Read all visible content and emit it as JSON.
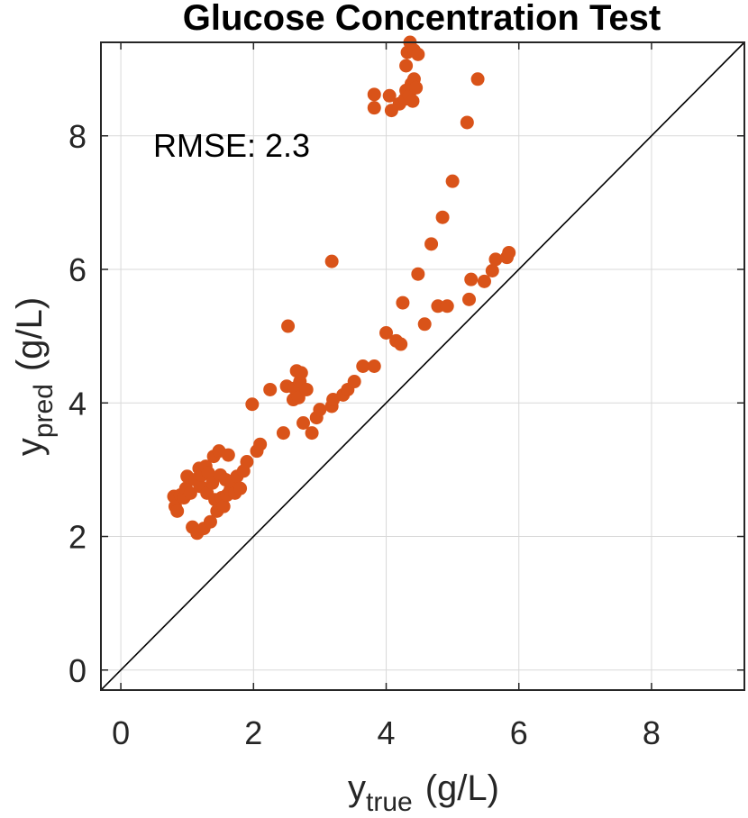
{
  "chart_data": {
    "type": "scatter",
    "title": "Glucose Concentration Test",
    "xlabel": {
      "main": "y",
      "sub": "true",
      "unit": "(g/L)"
    },
    "ylabel": {
      "main": "y",
      "sub": "pred",
      "unit": "(g/L)"
    },
    "xlim": [
      -0.3,
      9.4
    ],
    "ylim": [
      -0.3,
      9.4
    ],
    "xticks": [
      0,
      2,
      4,
      6,
      8
    ],
    "yticks": [
      0,
      2,
      4,
      6,
      8
    ],
    "grid": true,
    "annotation": "RMSE: 2.3",
    "reference_line": "y = x",
    "marker_color": "#D95319",
    "points": [
      [
        0.8,
        2.6
      ],
      [
        0.82,
        2.45
      ],
      [
        0.85,
        2.38
      ],
      [
        0.9,
        2.62
      ],
      [
        0.95,
        2.58
      ],
      [
        0.98,
        2.72
      ],
      [
        1.0,
        2.9
      ],
      [
        1.05,
        2.65
      ],
      [
        1.08,
        2.14
      ],
      [
        1.12,
        2.85
      ],
      [
        1.15,
        2.05
      ],
      [
        1.18,
        3.02
      ],
      [
        1.2,
        2.75
      ],
      [
        1.22,
        2.92
      ],
      [
        1.25,
        2.12
      ],
      [
        1.28,
        3.05
      ],
      [
        1.3,
        2.65
      ],
      [
        1.32,
        2.95
      ],
      [
        1.35,
        2.22
      ],
      [
        1.38,
        2.8
      ],
      [
        1.4,
        3.2
      ],
      [
        1.42,
        2.55
      ],
      [
        1.45,
        2.38
      ],
      [
        1.48,
        3.28
      ],
      [
        1.5,
        2.92
      ],
      [
        1.52,
        2.58
      ],
      [
        1.55,
        2.45
      ],
      [
        1.58,
        2.85
      ],
      [
        1.6,
        2.62
      ],
      [
        1.62,
        3.22
      ],
      [
        1.65,
        2.7
      ],
      [
        1.68,
        2.82
      ],
      [
        1.72,
        2.65
      ],
      [
        1.75,
        2.9
      ],
      [
        1.8,
        2.72
      ],
      [
        1.85,
        2.98
      ],
      [
        1.9,
        3.12
      ],
      [
        1.98,
        3.98
      ],
      [
        2.05,
        3.28
      ],
      [
        2.1,
        3.38
      ],
      [
        2.25,
        4.2
      ],
      [
        2.45,
        3.55
      ],
      [
        2.5,
        4.25
      ],
      [
        2.52,
        5.15
      ],
      [
        2.6,
        4.05
      ],
      [
        2.62,
        4.22
      ],
      [
        2.65,
        4.48
      ],
      [
        2.68,
        4.08
      ],
      [
        2.7,
        4.32
      ],
      [
        2.72,
        4.45
      ],
      [
        2.75,
        3.7
      ],
      [
        2.8,
        4.2
      ],
      [
        2.88,
        3.55
      ],
      [
        2.95,
        3.78
      ],
      [
        3.0,
        3.9
      ],
      [
        3.18,
        3.95
      ],
      [
        3.18,
        6.12
      ],
      [
        3.2,
        4.05
      ],
      [
        3.35,
        4.12
      ],
      [
        3.42,
        4.2
      ],
      [
        3.52,
        4.32
      ],
      [
        3.65,
        4.55
      ],
      [
        3.82,
        4.55
      ],
      [
        3.82,
        8.62
      ],
      [
        3.82,
        8.42
      ],
      [
        4.0,
        5.05
      ],
      [
        4.05,
        8.6
      ],
      [
        4.08,
        8.38
      ],
      [
        4.15,
        4.93
      ],
      [
        4.2,
        8.48
      ],
      [
        4.22,
        4.88
      ],
      [
        4.25,
        5.5
      ],
      [
        4.28,
        8.55
      ],
      [
        4.3,
        9.05
      ],
      [
        4.3,
        8.68
      ],
      [
        4.32,
        9.25
      ],
      [
        4.35,
        8.6
      ],
      [
        4.36,
        9.4
      ],
      [
        4.38,
        8.78
      ],
      [
        4.4,
        8.52
      ],
      [
        4.42,
        8.85
      ],
      [
        4.42,
        9.28
      ],
      [
        4.45,
        8.72
      ],
      [
        4.48,
        5.93
      ],
      [
        4.48,
        9.22
      ],
      [
        4.58,
        5.18
      ],
      [
        4.68,
        6.38
      ],
      [
        4.78,
        5.45
      ],
      [
        4.85,
        6.78
      ],
      [
        4.92,
        5.45
      ],
      [
        5.0,
        7.32
      ],
      [
        5.22,
        8.2
      ],
      [
        5.25,
        5.55
      ],
      [
        5.28,
        5.85
      ],
      [
        5.38,
        8.85
      ],
      [
        5.48,
        5.82
      ],
      [
        5.6,
        5.98
      ],
      [
        5.65,
        6.15
      ],
      [
        5.82,
        6.18
      ],
      [
        5.85,
        6.25
      ]
    ]
  }
}
